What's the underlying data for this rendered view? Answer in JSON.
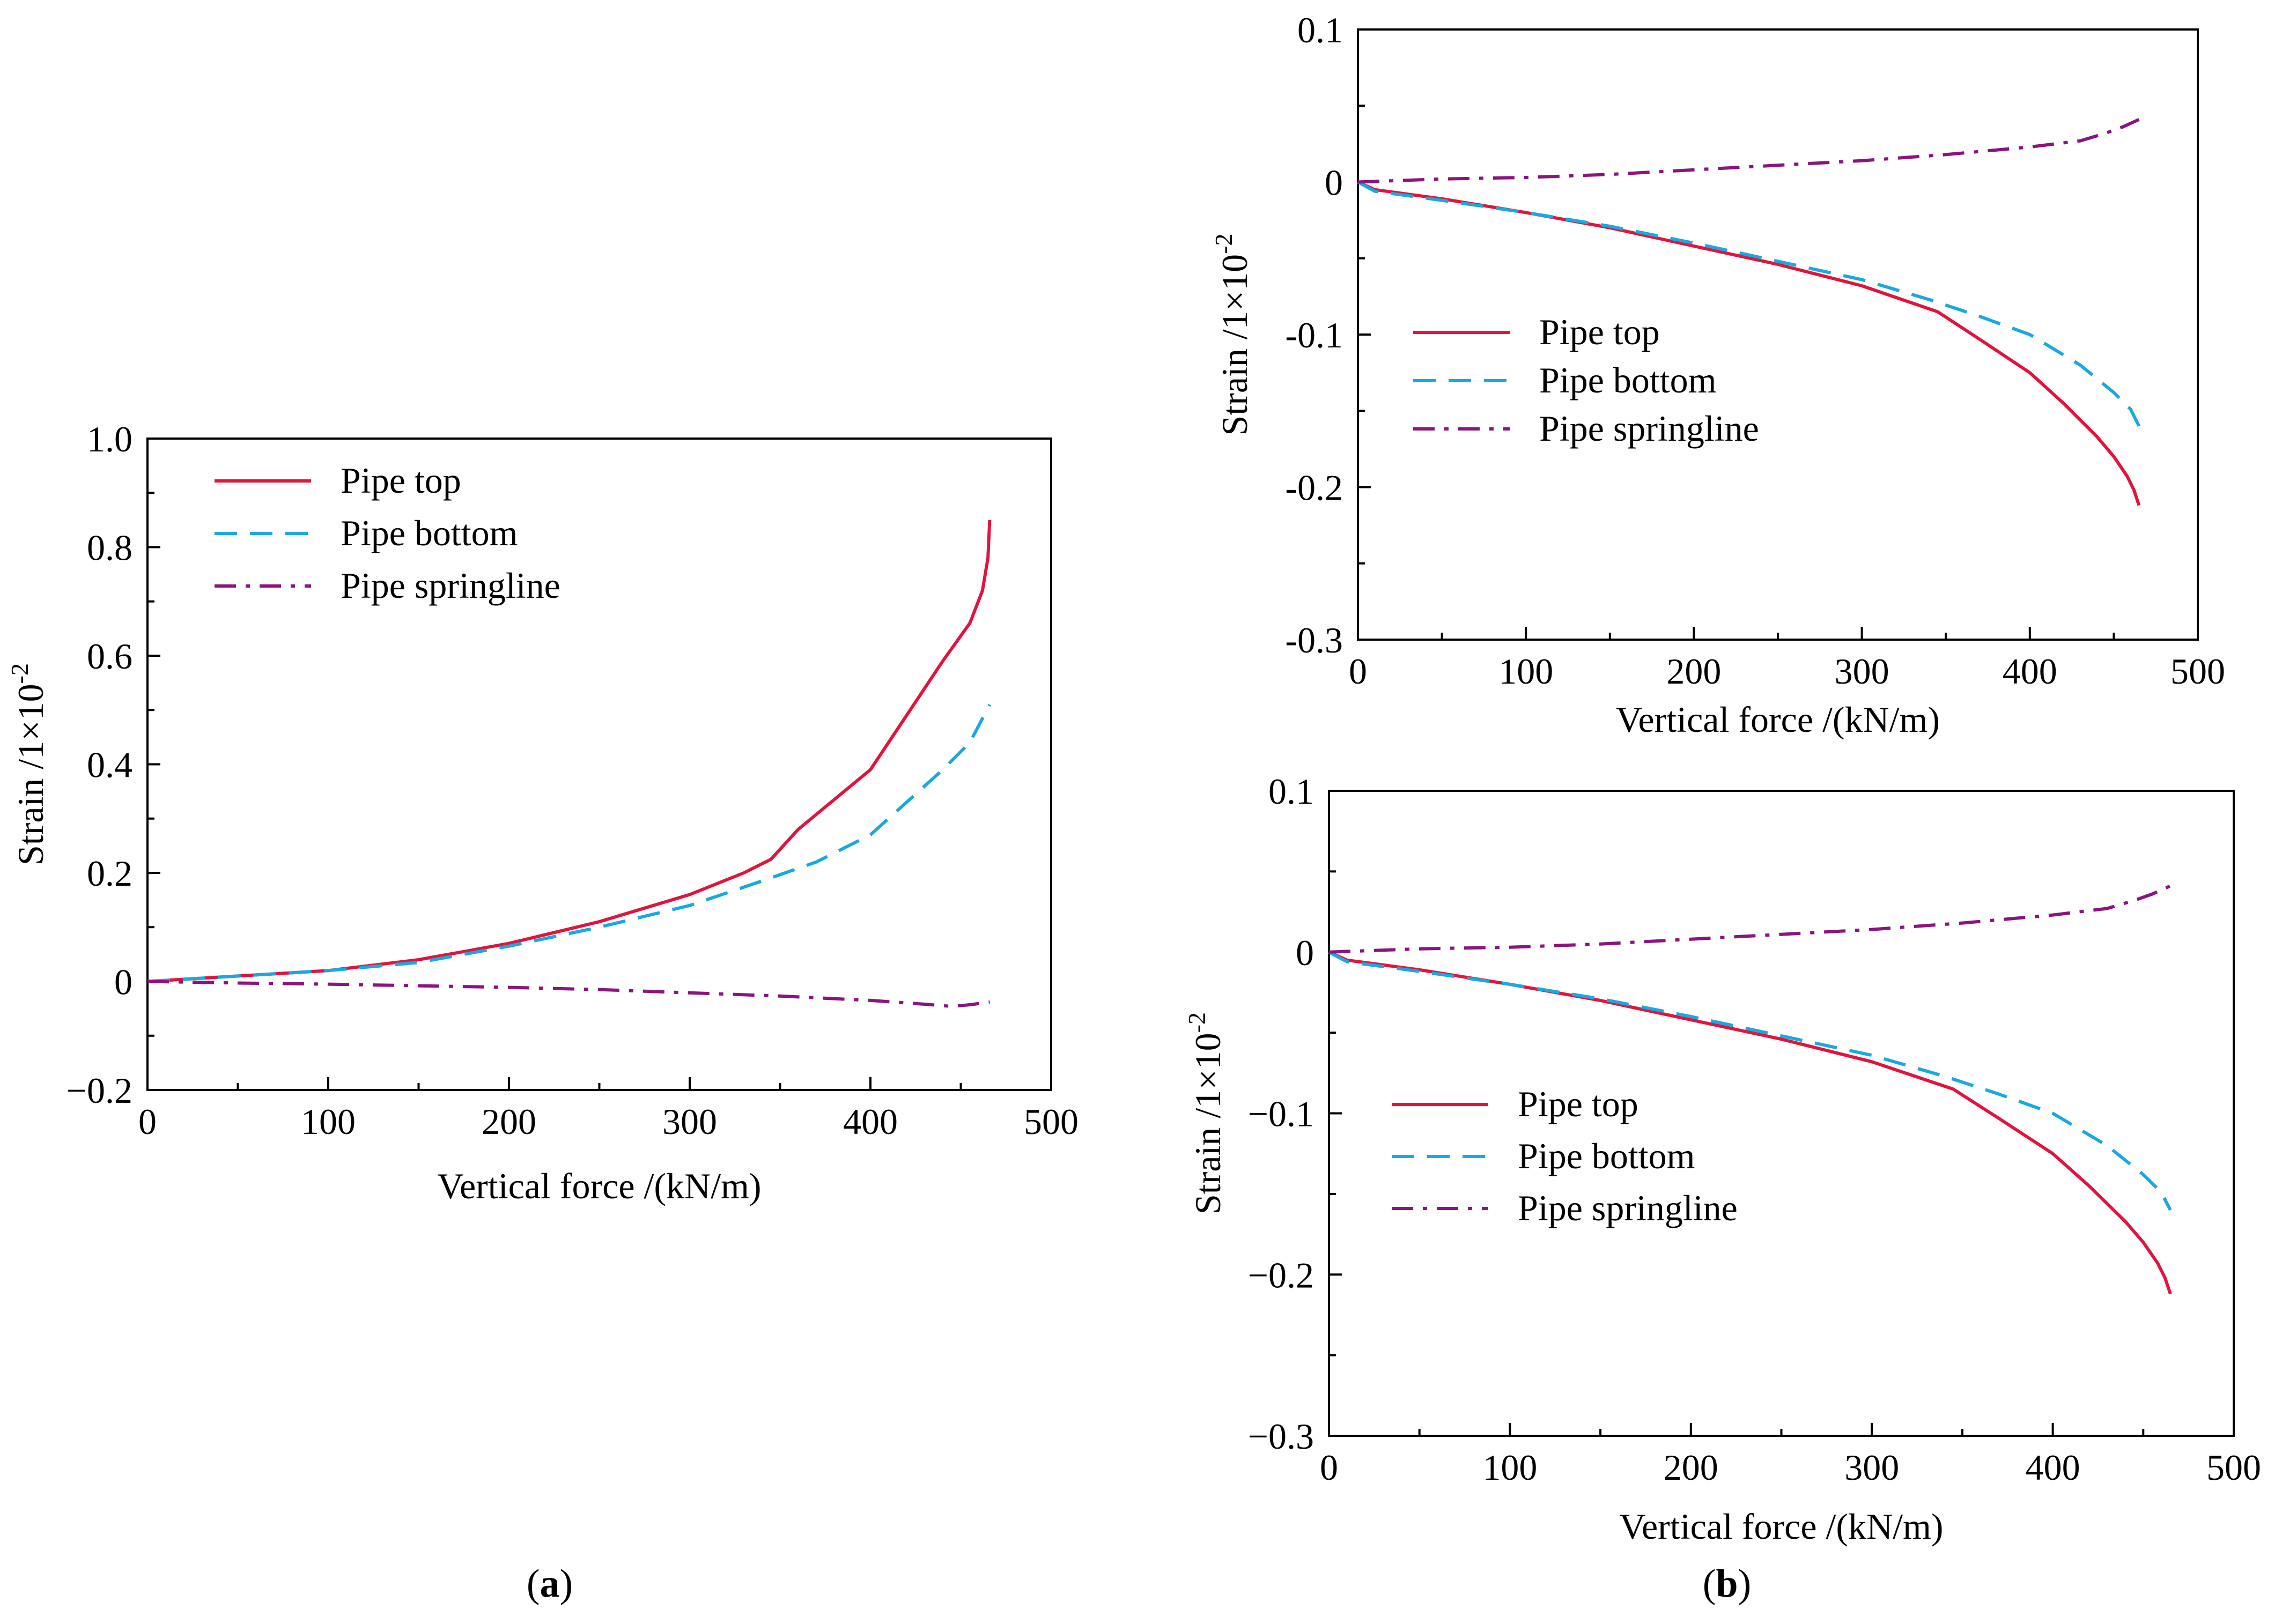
{
  "figure": {
    "panel_labels": [
      {
        "open": "(",
        "letter": "a",
        "close": ")"
      },
      {
        "open": "(",
        "letter": "b",
        "close": ")"
      }
    ]
  },
  "series_styles": [
    {
      "name": "Pipe top",
      "color": "#e0153f",
      "dash": "solid"
    },
    {
      "name": "Pipe bottom",
      "color": "#1ba8de",
      "dash": "dashed"
    },
    {
      "name": "Pipe springline",
      "color": "#8b147e",
      "dash": "dashdot"
    }
  ],
  "chart_data": [
    {
      "type": "line",
      "panel": "a",
      "title": "",
      "xlabel": "Vertical force /(kN/m)",
      "ylabel": "Strain /1×10",
      "ylabel_exponent": "-2",
      "xlim": [
        0,
        500
      ],
      "ylim": [
        -0.2,
        1.0
      ],
      "xticks": [
        0,
        100,
        200,
        300,
        400,
        500
      ],
      "xtick_labels": [
        "0",
        "100",
        "200",
        "300",
        "400",
        "500"
      ],
      "yticks": [
        -0.2,
        0,
        0.2,
        0.4,
        0.6,
        0.8,
        1.0
      ],
      "ytick_labels": [
        "−0.2",
        "0",
        "0.2",
        "0.4",
        "0.6",
        "0.8",
        "1.0"
      ],
      "legend_position": "top-left",
      "grid": false,
      "series": [
        {
          "name": "Pipe top",
          "x": [
            0,
            50,
            100,
            150,
            200,
            250,
            300,
            330,
            345,
            360,
            400,
            420,
            440,
            455,
            462,
            465,
            466
          ],
          "y": [
            0,
            0.01,
            0.02,
            0.04,
            0.07,
            0.11,
            0.16,
            0.2,
            0.225,
            0.28,
            0.39,
            0.49,
            0.59,
            0.66,
            0.72,
            0.78,
            0.85
          ]
        },
        {
          "name": "Pipe bottom",
          "x": [
            0,
            50,
            100,
            150,
            200,
            250,
            300,
            340,
            370,
            400,
            420,
            440,
            455,
            466
          ],
          "y": [
            0,
            0.01,
            0.02,
            0.035,
            0.065,
            0.1,
            0.14,
            0.185,
            0.22,
            0.27,
            0.33,
            0.39,
            0.44,
            0.51
          ]
        },
        {
          "name": "Pipe springline",
          "x": [
            0,
            50,
            100,
            150,
            200,
            250,
            300,
            350,
            400,
            430,
            445,
            455,
            466
          ],
          "y": [
            0,
            -0.003,
            -0.005,
            -0.008,
            -0.011,
            -0.015,
            -0.021,
            -0.027,
            -0.035,
            -0.042,
            -0.046,
            -0.043,
            -0.038
          ]
        }
      ]
    },
    {
      "type": "line",
      "panel": "b-top",
      "title": "",
      "xlabel": "Vertical force /(kN/m)",
      "ylabel": "Strain /1×10",
      "ylabel_exponent": "-2",
      "xlim": [
        0,
        500
      ],
      "ylim": [
        -0.3,
        0.1
      ],
      "xticks": [
        0,
        100,
        200,
        300,
        400,
        500
      ],
      "xtick_labels": [
        "0",
        "100",
        "200",
        "300",
        "400",
        "500"
      ],
      "yticks": [
        -0.3,
        -0.2,
        -0.1,
        0,
        0.1
      ],
      "ytick_labels": [
        "-0.3",
        "-0.2",
        "-0.1",
        "0",
        "0.1"
      ],
      "legend_position": "center-left",
      "grid": false,
      "series": [
        {
          "name": "Pipe top",
          "x": [
            0,
            10,
            50,
            100,
            150,
            200,
            250,
            300,
            345,
            370,
            400,
            420,
            440,
            450,
            458,
            462,
            465
          ],
          "y": [
            0,
            -0.005,
            -0.011,
            -0.02,
            -0.03,
            -0.042,
            -0.054,
            -0.068,
            -0.085,
            -0.103,
            -0.125,
            -0.145,
            -0.167,
            -0.18,
            -0.193,
            -0.202,
            -0.212
          ]
        },
        {
          "name": "Pipe bottom",
          "x": [
            0,
            10,
            50,
            100,
            150,
            200,
            250,
            300,
            340,
            370,
            400,
            430,
            450,
            460,
            465
          ],
          "y": [
            0,
            -0.006,
            -0.012,
            -0.02,
            -0.029,
            -0.04,
            -0.052,
            -0.064,
            -0.077,
            -0.088,
            -0.1,
            -0.12,
            -0.138,
            -0.149,
            -0.16
          ]
        },
        {
          "name": "Pipe springline",
          "x": [
            0,
            50,
            100,
            150,
            200,
            250,
            300,
            350,
            400,
            430,
            445,
            455,
            465
          ],
          "y": [
            0,
            0.002,
            0.003,
            0.005,
            0.008,
            0.011,
            0.014,
            0.018,
            0.023,
            0.027,
            0.032,
            0.036,
            0.041
          ]
        }
      ]
    },
    {
      "type": "line",
      "panel": "b-bottom",
      "title": "",
      "xlabel": "Vertical force /(kN/m)",
      "ylabel": "Strain /1×10",
      "ylabel_exponent": "-2",
      "xlim": [
        0,
        500
      ],
      "ylim": [
        -0.3,
        0.1
      ],
      "xticks": [
        0,
        100,
        200,
        300,
        400,
        500
      ],
      "xtick_labels": [
        "0",
        "100",
        "200",
        "300",
        "400",
        "500"
      ],
      "yticks": [
        -0.3,
        -0.2,
        -0.1,
        0,
        0.1
      ],
      "ytick_labels": [
        "−0.3",
        "−0.2",
        "−0.1",
        "0",
        "0.1"
      ],
      "legend_position": "bottom-left",
      "grid": false,
      "series": [
        {
          "name": "Pipe top",
          "x": [
            0,
            10,
            50,
            100,
            150,
            200,
            250,
            300,
            345,
            370,
            400,
            420,
            440,
            450,
            458,
            462,
            465
          ],
          "y": [
            0,
            -0.005,
            -0.011,
            -0.02,
            -0.03,
            -0.042,
            -0.054,
            -0.068,
            -0.085,
            -0.103,
            -0.125,
            -0.145,
            -0.167,
            -0.18,
            -0.193,
            -0.202,
            -0.212
          ]
        },
        {
          "name": "Pipe bottom",
          "x": [
            0,
            10,
            50,
            100,
            150,
            200,
            250,
            300,
            340,
            370,
            400,
            430,
            450,
            460,
            465
          ],
          "y": [
            0,
            -0.006,
            -0.012,
            -0.02,
            -0.029,
            -0.04,
            -0.052,
            -0.064,
            -0.077,
            -0.088,
            -0.1,
            -0.12,
            -0.138,
            -0.149,
            -0.16
          ]
        },
        {
          "name": "Pipe springline",
          "x": [
            0,
            50,
            100,
            150,
            200,
            250,
            300,
            350,
            400,
            430,
            445,
            455,
            465
          ],
          "y": [
            0,
            0.002,
            0.003,
            0.005,
            0.008,
            0.011,
            0.014,
            0.018,
            0.023,
            0.027,
            0.032,
            0.036,
            0.041
          ]
        }
      ]
    }
  ]
}
